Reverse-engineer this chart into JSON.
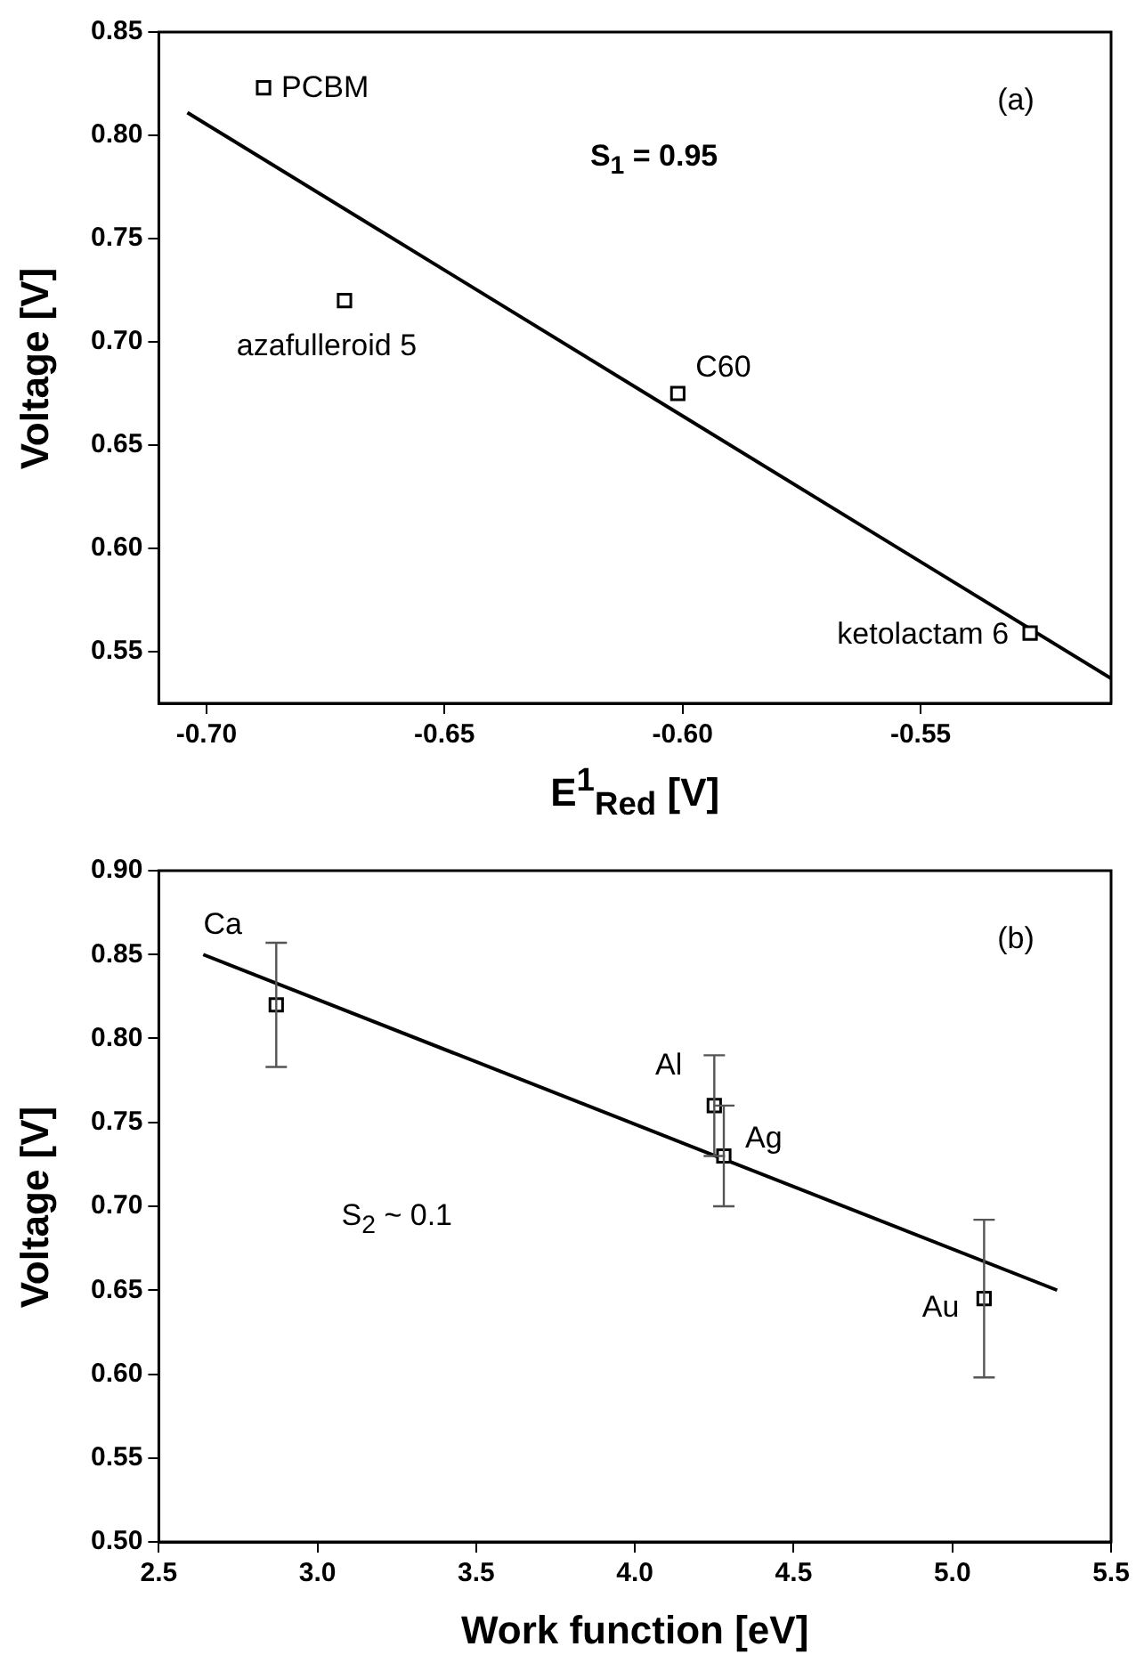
{
  "chart_data": [
    {
      "type": "scatter",
      "xlabel": "E$^{1}$$_{Red}$ [V]",
      "ylabel": "Voltage [V]",
      "xlim": [
        -0.71,
        -0.51
      ],
      "ylim": [
        0.525,
        0.85
      ],
      "xticks": [
        {
          "value": -0.7,
          "label": "-0.70"
        },
        {
          "value": -0.65,
          "label": "-0.65"
        },
        {
          "value": -0.6,
          "label": "-0.60"
        },
        {
          "value": -0.55,
          "label": "-0.55"
        }
      ],
      "yticks": [
        {
          "value": 0.55,
          "label": "0.55"
        },
        {
          "value": 0.6,
          "label": "0.60"
        },
        {
          "value": 0.65,
          "label": "0.65"
        },
        {
          "value": 0.7,
          "label": "0.70"
        },
        {
          "value": 0.75,
          "label": "0.75"
        },
        {
          "value": 0.8,
          "label": "0.80"
        },
        {
          "value": 0.85,
          "label": "0.85"
        }
      ],
      "grid": false,
      "legend": false,
      "series": [
        {
          "marker": "square",
          "color": "#000000",
          "x": [
            -0.688,
            -0.671,
            -0.601,
            -0.527
          ],
          "values": [
            0.823,
            0.72,
            0.675,
            0.559
          ]
        },
        {
          "type": "line",
          "color": "#000000",
          "x": [
            -0.704,
            -0.51
          ],
          "values": [
            0.811,
            0.537
          ]
        }
      ],
      "annotations": [
        "(a)",
        "S$_{1}$ = 0.95",
        {
          "text": "PCBM",
          "x": -0.688,
          "y": 0.823
        },
        {
          "text": "azafulleroid 5",
          "x": -0.671,
          "y": 0.72
        },
        {
          "text": "C60",
          "x": -0.601,
          "y": 0.675
        },
        {
          "text": "ketolactam 6",
          "x": -0.527,
          "y": 0.559
        }
      ]
    },
    {
      "type": "scatter",
      "xlabel": "Work function [eV]",
      "ylabel": "Voltage [V]",
      "xlim": [
        2.5,
        5.5
      ],
      "ylim": [
        0.5,
        0.9
      ],
      "xticks": [
        {
          "value": 2.5,
          "label": "2.5"
        },
        {
          "value": 3,
          "label": "3.0"
        },
        {
          "value": 3.5,
          "label": "3.5"
        },
        {
          "value": 4,
          "label": "4.0"
        },
        {
          "value": 4.5,
          "label": "4.5"
        },
        {
          "value": 5,
          "label": "5.0"
        },
        {
          "value": 5.5,
          "label": "5.5"
        }
      ],
      "yticks": [
        {
          "value": 0.5,
          "label": "0.50"
        },
        {
          "value": 0.55,
          "label": "0.55"
        },
        {
          "value": 0.6,
          "label": "0.60"
        },
        {
          "value": 0.65,
          "label": "0.65"
        },
        {
          "value": 0.7,
          "label": "0.70"
        },
        {
          "value": 0.75,
          "label": "0.75"
        },
        {
          "value": 0.8,
          "label": "0.80"
        },
        {
          "value": 0.85,
          "label": "0.85"
        },
        {
          "value": 0.9,
          "label": "0.90"
        }
      ],
      "grid": false,
      "legend": false,
      "series": [
        {
          "marker": "square",
          "color": "#000000",
          "x": [
            2.87,
            4.25,
            4.28,
            5.1
          ],
          "values": [
            0.82,
            0.76,
            0.73,
            0.645
          ],
          "errors": [
            0.037,
            0.03,
            0.03,
            0.047
          ]
        },
        {
          "type": "line",
          "color": "#000000",
          "x": [
            2.64,
            5.33
          ],
          "values": [
            0.85,
            0.65
          ]
        }
      ],
      "annotations": [
        "(b)",
        "S$_{2}$ ~ 0.1",
        {
          "text": "Ca",
          "x": 2.87,
          "y": 0.82
        },
        {
          "text": "Al",
          "x": 4.25,
          "y": 0.76
        },
        {
          "text": "Ag",
          "x": 4.28,
          "y": 0.73
        },
        {
          "text": "Au",
          "x": 5.1,
          "y": 0.645
        }
      ]
    }
  ]
}
